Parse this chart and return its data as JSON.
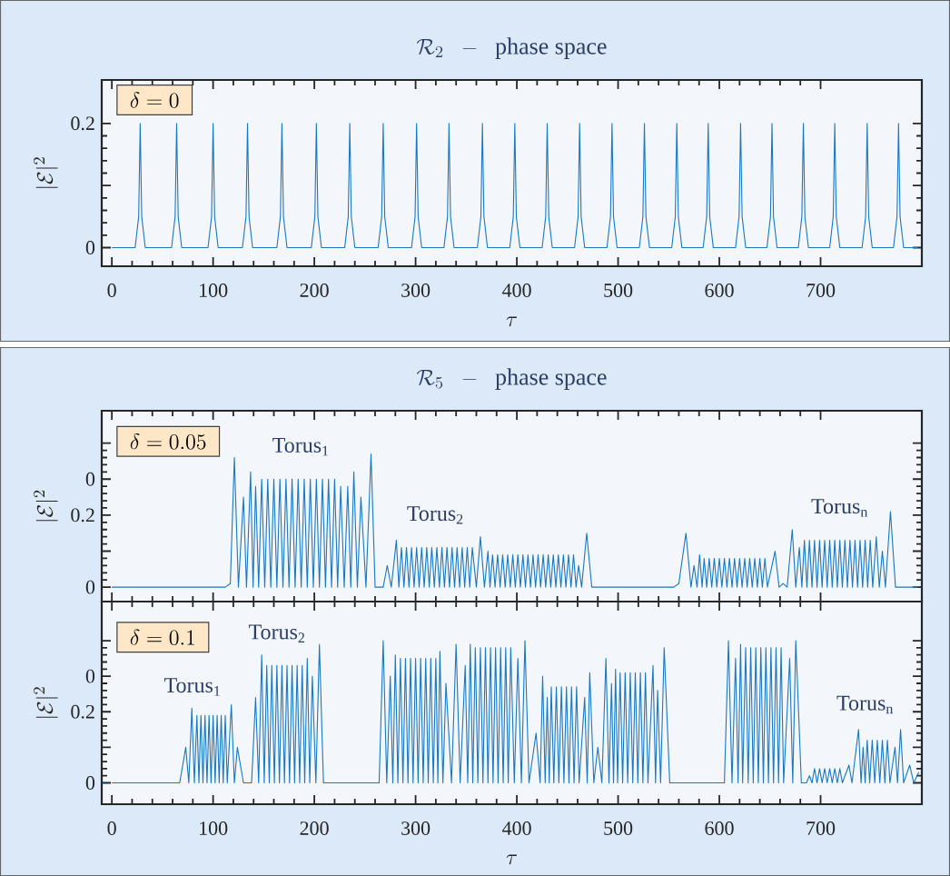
{
  "chart_data": [
    {
      "type": "line",
      "title": "\\mathcal{R}_2 \\;\\; - \\;\\; \\mathrm{phase\\ space}",
      "xlabel": "\\tau",
      "ylabel": "|\\mathcal{E}|^2",
      "annotations": [
        "\\delta = 0"
      ],
      "xlim": [
        -10,
        800
      ],
      "xticks": [
        0,
        100,
        200,
        300,
        400,
        500,
        600,
        700
      ],
      "ylim": [
        -0.03,
        0.27
      ],
      "yticks": [
        0,
        {
          "value": 0.1,
          "label": null
        },
        0.2
      ],
      "x": [
        0,
        23,
        26.5,
        28,
        29.5,
        33,
        59,
        62.5,
        64,
        65.5,
        69,
        95,
        98.5,
        100,
        101.5,
        105,
        129,
        132.5,
        134,
        135.5,
        139,
        163,
        166.5,
        168,
        169.5,
        173,
        197,
        200.5,
        202,
        203.5,
        207,
        230,
        233.5,
        235,
        236.5,
        240,
        263,
        266.5,
        268,
        269.5,
        273,
        296,
        299.5,
        301,
        302.5,
        306,
        328,
        331.5,
        333,
        334.5,
        338,
        361,
        364.5,
        366,
        367.5,
        371,
        393,
        396.5,
        398,
        399.5,
        403,
        425,
        428.5,
        430,
        431.5,
        435,
        457,
        460.5,
        462,
        463.5,
        467,
        489,
        492.5,
        494,
        495.5,
        499,
        521,
        524.5,
        526,
        527.5,
        531,
        553,
        556.5,
        558,
        559.5,
        563,
        584,
        587.5,
        589,
        590.5,
        594,
        616,
        619.5,
        621,
        622.5,
        626,
        647,
        650.5,
        652,
        653.5,
        657,
        678,
        681.5,
        683,
        684.5,
        688,
        709,
        712.5,
        714,
        715.5,
        719,
        741,
        744.5,
        746,
        747.5,
        751,
        772,
        775.5,
        777,
        778.5,
        782,
        796
      ],
      "series": [
        {
          "color": "#1a78c2",
          "values": [
            0,
            0,
            0.05,
            0.2,
            0.05,
            0,
            0,
            0.05,
            0.2,
            0.05,
            0,
            0,
            0.05,
            0.2,
            0.05,
            0,
            0,
            0.05,
            0.2,
            0.05,
            0,
            0,
            0.05,
            0.2,
            0.05,
            0,
            0,
            0.05,
            0.2,
            0.05,
            0,
            0,
            0.05,
            0.2,
            0.05,
            0,
            0,
            0.05,
            0.2,
            0.05,
            0,
            0,
            0.05,
            0.2,
            0.05,
            0,
            0,
            0.05,
            0.2,
            0.05,
            0,
            0,
            0.05,
            0.2,
            0.05,
            0,
            0,
            0.05,
            0.2,
            0.05,
            0,
            0,
            0.05,
            0.2,
            0.05,
            0,
            0,
            0.05,
            0.2,
            0.05,
            0,
            0,
            0.05,
            0.2,
            0.05,
            0,
            0,
            0.05,
            0.2,
            0.05,
            0,
            0,
            0.05,
            0.2,
            0.05,
            0,
            0,
            0.05,
            0.2,
            0.05,
            0,
            0,
            0.05,
            0.2,
            0.05,
            0,
            0,
            0.05,
            0.2,
            0.05,
            0,
            0,
            0.05,
            0.2,
            0.05,
            0,
            0,
            0.05,
            0.2,
            0.05,
            0,
            0,
            0.05,
            0.2,
            0.05,
            0,
            0,
            0.05,
            0.2,
            0.05,
            0,
            0
          ]
        }
      ]
    },
    {
      "type": "line",
      "title": "\\mathcal{R}_5 \\;\\; - \\;\\; \\mathrm{phase\\ space}",
      "ylabel": "|\\mathcal{E}|^2",
      "annotations": [
        "\\delta = 0.05",
        "Torus$_{1}$",
        "Torus$_{2}$",
        "Torus$_{n}$"
      ],
      "xlim": [
        -10,
        800
      ],
      "xticks": [
        0,
        100,
        200,
        300,
        400,
        500,
        600,
        700
      ],
      "tick_labels": "y",
      "ylim": [
        -0.04,
        0.49
      ],
      "yticks": [
        0,
        {
          "value": 0.1,
          "label": null
        },
        {
          "value": 0.2,
          "label": "0.2"
        },
        {
          "value": 0.3,
          "label": "0"
        },
        {
          "value": 0.4,
          "label": null
        }
      ],
      "x": [
        0,
        112,
        117,
        121,
        125,
        130,
        133,
        137,
        139.5,
        142,
        145,
        148,
        151,
        154,
        157,
        160,
        163,
        166,
        169,
        172,
        175,
        178,
        181,
        184,
        187,
        190,
        193,
        196,
        199,
        202,
        205,
        208,
        211,
        214,
        217,
        220,
        223,
        226,
        229.5,
        233,
        236,
        239,
        242.5,
        246,
        251,
        256,
        260,
        268,
        272,
        276,
        281,
        283.5,
        286,
        288.5,
        291,
        293.5,
        296,
        298.5,
        301,
        303.5,
        306,
        308.5,
        311,
        313.5,
        316,
        318.5,
        321,
        323.5,
        326,
        328.5,
        331,
        333.5,
        336,
        338.5,
        341,
        343.5,
        346,
        348.5,
        351,
        353.5,
        356,
        360,
        364,
        368,
        371.5,
        373.5,
        376,
        378.5,
        381,
        383.5,
        386,
        388.5,
        391,
        393.5,
        396,
        398.5,
        401,
        403.5,
        406,
        408.5,
        411,
        413.5,
        416,
        418.5,
        421,
        423.5,
        426,
        428.5,
        431,
        433.5,
        436,
        438.5,
        441,
        443.5,
        446,
        448.5,
        451,
        453.5,
        456,
        458.5,
        461,
        464,
        469,
        474,
        478,
        555,
        560,
        567,
        572,
        575,
        578,
        580.5,
        583,
        585,
        587.5,
        590,
        592.5,
        595,
        597.5,
        600,
        602.5,
        605,
        607.5,
        610,
        612.5,
        615,
        617.5,
        620,
        622.5,
        625,
        627.5,
        630,
        632.5,
        635,
        637.5,
        640,
        642.5,
        645,
        647.5,
        655,
        659,
        663,
        667,
        672,
        675.5,
        679,
        681.5,
        684,
        686.5,
        689,
        691.5,
        694,
        696.5,
        699,
        701.5,
        704,
        706.5,
        709,
        711.5,
        714,
        716.5,
        719,
        721.5,
        724,
        726.5,
        729,
        731.5,
        734,
        736.5,
        739,
        741.5,
        744,
        746.5,
        749,
        751.5,
        755,
        758,
        761,
        764,
        769,
        774,
        796
      ],
      "series": [
        {
          "color": "#1a78c2",
          "values": [
            0,
            0,
            0.01,
            0.36,
            0,
            0.25,
            0,
            0.32,
            0,
            0.28,
            0,
            0.3,
            0,
            0.3,
            0,
            0.3,
            0,
            0.3,
            0,
            0.3,
            0,
            0.3,
            0,
            0.3,
            0,
            0.3,
            0,
            0.3,
            0,
            0.3,
            0,
            0.3,
            0,
            0.3,
            0,
            0.3,
            0,
            0.28,
            0,
            0.28,
            0,
            0.32,
            0,
            0.25,
            0,
            0.37,
            0,
            0,
            0.06,
            0,
            0.13,
            0,
            0.11,
            0,
            0.11,
            0,
            0.11,
            0,
            0.11,
            0,
            0.11,
            0,
            0.11,
            0,
            0.11,
            0,
            0.11,
            0,
            0.11,
            0,
            0.11,
            0,
            0.11,
            0,
            0.11,
            0,
            0.11,
            0,
            0.11,
            0,
            0.11,
            0,
            0.14,
            0,
            0.1,
            0,
            0.09,
            0,
            0.09,
            0,
            0.09,
            0,
            0.09,
            0,
            0.09,
            0,
            0.09,
            0,
            0.09,
            0,
            0.09,
            0,
            0.09,
            0,
            0.09,
            0,
            0.09,
            0,
            0.09,
            0,
            0.09,
            0,
            0.09,
            0,
            0.09,
            0,
            0.09,
            0,
            0.09,
            0,
            0.06,
            0,
            0.15,
            0,
            0,
            0,
            0.01,
            0.15,
            0,
            0.06,
            0,
            0.09,
            0,
            0.08,
            0,
            0.08,
            0,
            0.08,
            0,
            0.08,
            0,
            0.08,
            0,
            0.08,
            0,
            0.08,
            0,
            0.08,
            0,
            0.08,
            0,
            0.08,
            0,
            0.08,
            0,
            0.08,
            0,
            0.08,
            0,
            0.1,
            0,
            0.01,
            0,
            0.16,
            0,
            0.11,
            0,
            0.13,
            0,
            0.13,
            0,
            0.13,
            0,
            0.13,
            0,
            0.13,
            0,
            0.13,
            0,
            0.13,
            0,
            0.13,
            0,
            0.13,
            0,
            0.13,
            0,
            0.13,
            0,
            0.13,
            0,
            0.13,
            0,
            0.13,
            0,
            0.14,
            0,
            0.1,
            0,
            0.21,
            0,
            0
          ]
        }
      ]
    },
    {
      "type": "line",
      "xlabel": "\\tau",
      "ylabel": "|\\mathcal{E}|^2",
      "annotations": [
        "\\delta = 0.1",
        "Torus$_{1}$",
        "Torus$_{2}$",
        "Torus$_{n}$"
      ],
      "xlim": [
        -10,
        800
      ],
      "xticks": [
        0,
        100,
        200,
        300,
        400,
        500,
        600,
        700
      ],
      "ylim": [
        -0.06,
        0.51
      ],
      "yticks": [
        0,
        {
          "value": 0.1,
          "label": null
        },
        {
          "value": 0.2,
          "label": "0.2"
        },
        {
          "value": 0.3,
          "label": "0"
        },
        {
          "value": 0.4,
          "label": null
        }
      ],
      "x": [
        0,
        67,
        73,
        76,
        79,
        81.5,
        84,
        86,
        88,
        90,
        92,
        94,
        96,
        98,
        100,
        102,
        104,
        106,
        108,
        110,
        112,
        114,
        118,
        121,
        124,
        130,
        138,
        142,
        145,
        148,
        150.5,
        153,
        155.5,
        158,
        160.5,
        163,
        165.5,
        168,
        170.5,
        173,
        175.5,
        178,
        180.5,
        183,
        185.5,
        188,
        190.5,
        193,
        195.5,
        198,
        201.5,
        205,
        209,
        264,
        268,
        271.5,
        275,
        277.5,
        280,
        282.5,
        285,
        287.5,
        290,
        292.5,
        295,
        297.5,
        300,
        302.5,
        305,
        307.5,
        310,
        312.5,
        315,
        317.5,
        320,
        322,
        324,
        327,
        330,
        335.5,
        340,
        344,
        349,
        351.5,
        354,
        356.5,
        359,
        361.5,
        364,
        366.5,
        369,
        371.5,
        374,
        376.5,
        379,
        381.5,
        384,
        386.5,
        389,
        391.5,
        394,
        397.5,
        401,
        404.5,
        408,
        412,
        419,
        423,
        425.5,
        428,
        430,
        432,
        434,
        436.5,
        439,
        441.5,
        444,
        446.5,
        449,
        451.5,
        454,
        456.5,
        459,
        461.5,
        467,
        469.5,
        472,
        476,
        480,
        484,
        488,
        491,
        493.5,
        495.5,
        497.5,
        499.5,
        502,
        504.5,
        507,
        509.5,
        512,
        514.5,
        517,
        519.5,
        522,
        524.5,
        527,
        529.5,
        534.5,
        537,
        539,
        542,
        545.5,
        551,
        605,
        609,
        612.5,
        616,
        618.5,
        621,
        623,
        626,
        628.5,
        631,
        633.5,
        636,
        638.5,
        641,
        643.5,
        646,
        648.5,
        651,
        653.5,
        656,
        658.5,
        661,
        663.5,
        669.5,
        672.5,
        675.5,
        681,
        686,
        689,
        691.5,
        694,
        696.5,
        699,
        701.5,
        704,
        706.5,
        709,
        711.5,
        714,
        716.5,
        719,
        721.5,
        728,
        731,
        737.5,
        740,
        742,
        744,
        746,
        748.5,
        751,
        753.5,
        756,
        758.5,
        761,
        763.5,
        766,
        768.5,
        773.5,
        776,
        779,
        782,
        788,
        792,
        797
      ],
      "series": [
        {
          "color": "#1a78c2",
          "values": [
            0,
            0,
            0.1,
            0,
            0.21,
            0,
            0.19,
            0,
            0.19,
            0,
            0.19,
            0,
            0.19,
            0,
            0.19,
            0,
            0.19,
            0,
            0.19,
            0,
            0.19,
            0,
            0.22,
            0,
            0.1,
            0,
            0,
            0.24,
            0,
            0.36,
            0,
            0.33,
            0,
            0.33,
            0,
            0.33,
            0,
            0.33,
            0,
            0.33,
            0,
            0.33,
            0,
            0.33,
            0,
            0.33,
            0,
            0.35,
            0,
            0.3,
            0,
            0.39,
            0,
            0,
            0.4,
            0,
            0.3,
            0,
            0.36,
            0,
            0.35,
            0,
            0.35,
            0,
            0.35,
            0,
            0.35,
            0,
            0.35,
            0,
            0.35,
            0,
            0.35,
            0,
            0.35,
            0,
            0.37,
            0,
            0.28,
            0,
            0.39,
            0,
            0.33,
            0,
            0.39,
            0,
            0.38,
            0,
            0.38,
            0,
            0.38,
            0,
            0.38,
            0,
            0.38,
            0,
            0.38,
            0,
            0.38,
            0,
            0.38,
            0,
            0.35,
            0,
            0.4,
            0,
            0.14,
            0,
            0.3,
            0,
            0.24,
            0,
            0.27,
            0,
            0.27,
            0,
            0.27,
            0,
            0.27,
            0,
            0.27,
            0,
            0.27,
            0,
            0.24,
            0,
            0.31,
            0,
            0.1,
            0,
            0.35,
            0,
            0.28,
            0,
            0.32,
            0,
            0.31,
            0,
            0.31,
            0,
            0.31,
            0,
            0.31,
            0,
            0.31,
            0,
            0.31,
            0,
            0.33,
            0,
            0.26,
            0,
            0.38,
            0,
            0,
            0.4,
            0,
            0.35,
            0,
            0.39,
            0,
            0.38,
            0,
            0.38,
            0,
            0.38,
            0,
            0.38,
            0,
            0.38,
            0,
            0.38,
            0,
            0.38,
            0,
            0.38,
            0,
            0.35,
            0,
            0.4,
            0,
            0,
            0.02,
            0,
            0.04,
            0,
            0.04,
            0,
            0.04,
            0,
            0.04,
            0,
            0.04,
            0,
            0.04,
            0,
            0.05,
            0,
            0.15,
            0,
            0.1,
            0,
            0.12,
            0,
            0.12,
            0,
            0.12,
            0,
            0.12,
            0,
            0.12,
            0,
            0.1,
            0,
            0.15,
            0,
            0.05,
            0,
            0.03
          ]
        }
      ]
    }
  ]
}
